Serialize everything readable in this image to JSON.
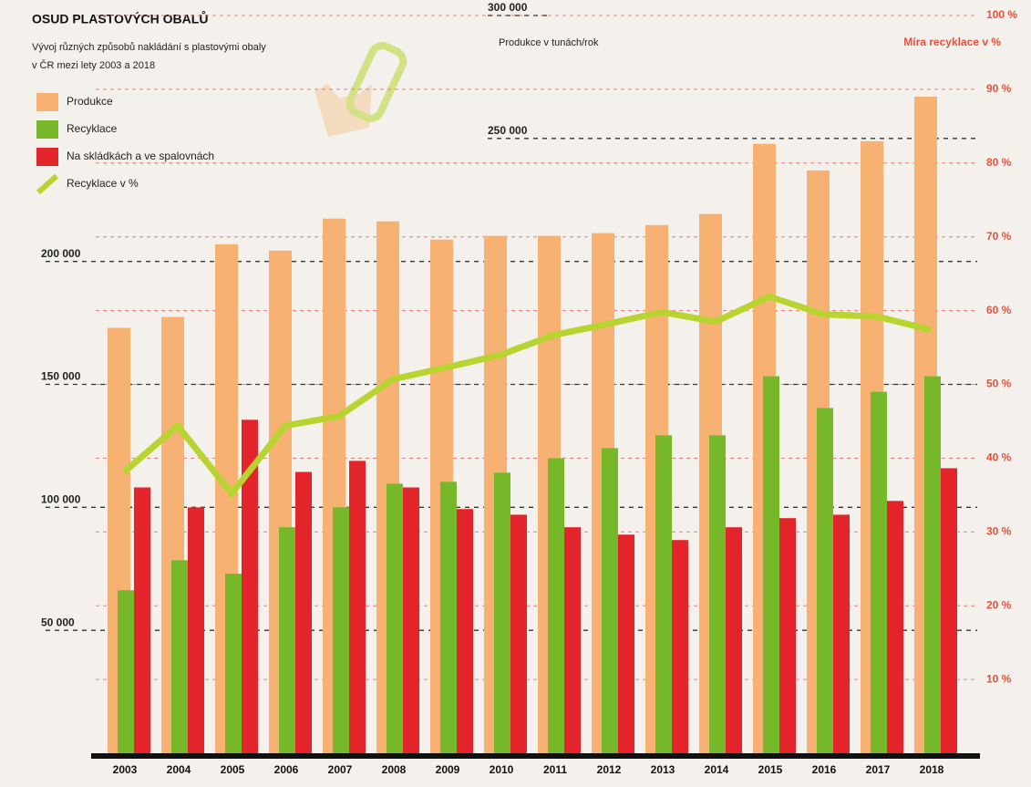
{
  "chart_data": {
    "type": "bar_line",
    "title": "OSUD PLASTOVÝCH OBALŮ",
    "subtitle": [
      "Vývoj různých způsobů nakládání s plastovými obaly",
      "v ČR mezi lety 2003 a 2018"
    ],
    "y_label": "Produkce v tunách/rok",
    "y2_label": "Míra recyklace v %",
    "categories": [
      "2003",
      "2004",
      "2005",
      "2006",
      "2007",
      "2008",
      "2009",
      "2010",
      "2011",
      "2012",
      "2013",
      "2014",
      "2015",
      "2016",
      "2017",
      "2018"
    ],
    "series": [
      {
        "name": "Produkce",
        "type": "bar",
        "color": "#f7b273",
        "values": [
          173000,
          177400,
          207000,
          204400,
          217400,
          216300,
          208900,
          210400,
          210400,
          211500,
          214800,
          219300,
          247800,
          237000,
          248900,
          267000
        ]
      },
      {
        "name": "Recyklace",
        "type": "bar",
        "color": "#77b82a",
        "values": [
          66300,
          78500,
          73000,
          91900,
          100000,
          109600,
          110400,
          114100,
          120000,
          124100,
          129300,
          129300,
          153300,
          140400,
          147000,
          153300
        ]
      },
      {
        "name": "Na skládkách a ve spalovnách",
        "type": "bar",
        "color": "#e3242b",
        "values": [
          108100,
          100000,
          135600,
          114400,
          118900,
          108100,
          99300,
          97000,
          91900,
          88900,
          86700,
          91900,
          95600,
          97000,
          102600,
          115900
        ]
      },
      {
        "name": "Recyklace v %",
        "type": "line",
        "axis": "y2",
        "color": "#b8d430",
        "values": [
          38.1,
          44.4,
          35.2,
          44.4,
          45.7,
          50.7,
          52.3,
          54.0,
          56.7,
          58.2,
          59.8,
          58.5,
          61.9,
          59.5,
          59.2,
          57.4
        ]
      }
    ],
    "ylim": [
      0,
      300000
    ],
    "yticks": [
      {
        "value": 50000,
        "label": "50 000"
      },
      {
        "value": 100000,
        "label": "100 000"
      },
      {
        "value": 150000,
        "label": "150 000"
      },
      {
        "value": 200000,
        "label": "200 000"
      },
      {
        "value": 250000,
        "label": "250 000"
      },
      {
        "value": 300000,
        "label": "300 000"
      }
    ],
    "y2lim": [
      0,
      100
    ],
    "y2ticks": [
      {
        "value": 10,
        "label": "10 %"
      },
      {
        "value": 20,
        "label": "20 %"
      },
      {
        "value": 30,
        "label": "30 %"
      },
      {
        "value": 40,
        "label": "40 %"
      },
      {
        "value": 50,
        "label": "50 %"
      },
      {
        "value": 60,
        "label": "60 %"
      },
      {
        "value": 70,
        "label": "70 %"
      },
      {
        "value": 80,
        "label": "80 %"
      },
      {
        "value": 90,
        "label": "90 %"
      },
      {
        "value": 100,
        "label": "100 %"
      }
    ],
    "grid": true,
    "legend": "top-left"
  }
}
